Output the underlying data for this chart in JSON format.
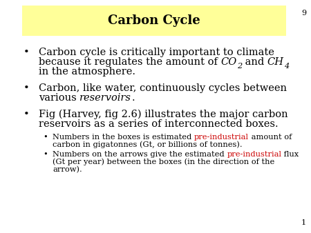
{
  "title": "Carbon Cycle",
  "title_bg": "#FFFF99",
  "bg": "#FFFFFF",
  "red": "#CC0000",
  "slide_num_top": "9",
  "slide_num_bot": "1",
  "title_fs": 13,
  "fs1": 10.5,
  "fs2": 8.2
}
